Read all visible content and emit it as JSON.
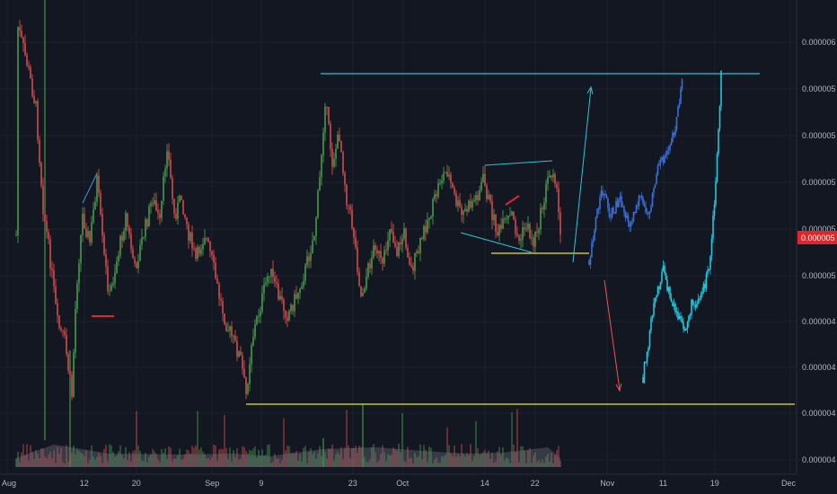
{
  "chart_data": {
    "type": "candlestick",
    "x_tick_labels": [
      "Aug",
      "12",
      "20",
      "Sep",
      "9",
      "23",
      "Oct",
      "14",
      "22",
      "Nov",
      "11",
      "19",
      "Dec"
    ],
    "y_tick_labels": [
      "0.000006",
      "0.000005",
      "0.000005",
      "0.000005",
      "0.000005",
      "0.000005",
      "0.000004",
      "0.000004",
      "0.000004",
      "0.000004"
    ],
    "current_price_label": "0.000005",
    "grid": true,
    "colors": {
      "background": "#131722",
      "grid": "#1e222d",
      "up": "#26a69a",
      "up_candle": "#4caf50",
      "down_candle": "#ef5350",
      "projection_blue": "#3b6fd4",
      "projection_cyan": "#26c6da",
      "resistance_line": "#26c6da",
      "support_line": "#e6e629",
      "price_tag": "#e0252b",
      "arrow_red": "#ef5350"
    },
    "annotations": {
      "resistance_level": "top horizontal teal line",
      "support_level": "bottom horizontal yellow line",
      "projections": [
        "blue candle path rising to resistance",
        "teal candle path dipping then rising to resistance"
      ]
    }
  }
}
